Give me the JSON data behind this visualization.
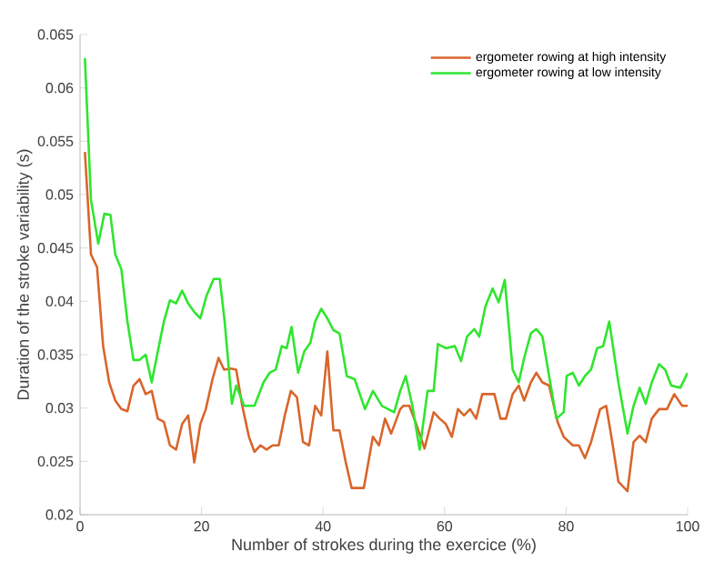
{
  "chart_data": {
    "type": "line",
    "xlabel": "Number of strokes during the exercice (%)",
    "ylabel": "Duration of the stroke variability (s)",
    "xlim": [
      0,
      100
    ],
    "xticks": [
      0,
      20,
      40,
      60,
      80,
      100
    ],
    "ylim": [
      0.02,
      0.065
    ],
    "yticks": [
      0.02,
      0.025,
      0.03,
      0.035,
      0.04,
      0.045,
      0.05,
      0.055,
      0.06,
      0.065
    ],
    "legend": "top right",
    "grid": false,
    "marker": "none",
    "line_style": "solid",
    "series": [
      {
        "name": "ergometer rowing at high intensity",
        "color": "#d9652b",
        "x": [
          0.8,
          1.8,
          2.8,
          3.8,
          4.8,
          5.8,
          6.8,
          7.8,
          8.8,
          9.8,
          10.8,
          11.8,
          12.8,
          13.8,
          14.8,
          15.8,
          16.8,
          17.8,
          18.8,
          19.8,
          20.7,
          21.8,
          22.8,
          23.7,
          24.8,
          25.7,
          26.7,
          27.8,
          28.7,
          29.7,
          30.7,
          31.7,
          32.7,
          33.7,
          34.7,
          35.7,
          36.7,
          37.7,
          38.7,
          39.7,
          40.7,
          41.7,
          42.7,
          43.7,
          44.7,
          46.7,
          48.2,
          49.2,
          50.2,
          51.2,
          52.7,
          53.2,
          54.2,
          55.2,
          56.7,
          58.2,
          59.2,
          60.2,
          61.2,
          62.2,
          63.2,
          64.2,
          65.2,
          66.2,
          68.2,
          69.2,
          70.1,
          71.2,
          72.2,
          73.1,
          74.2,
          75.1,
          76.1,
          77.2,
          78.6,
          79.6,
          81.1,
          82.1,
          83.1,
          84.1,
          85.6,
          86.6,
          87.6,
          88.6,
          90.1,
          91.1,
          92.1,
          93.1,
          94.1,
          95.3,
          96.6,
          97.8,
          99.1,
          100
        ],
        "values": [
          0.054,
          0.0444,
          0.0432,
          0.0358,
          0.0324,
          0.0307,
          0.0299,
          0.0297,
          0.0321,
          0.0327,
          0.0313,
          0.0316,
          0.029,
          0.0287,
          0.0265,
          0.0261,
          0.0285,
          0.0293,
          0.0249,
          0.0285,
          0.0299,
          0.0327,
          0.0347,
          0.0336,
          0.0337,
          0.0336,
          0.0302,
          0.0273,
          0.0259,
          0.0265,
          0.0261,
          0.0265,
          0.0265,
          0.0293,
          0.0316,
          0.031,
          0.0268,
          0.0265,
          0.0302,
          0.0293,
          0.0353,
          0.0279,
          0.0279,
          0.025,
          0.0225,
          0.0225,
          0.0273,
          0.0265,
          0.029,
          0.0276,
          0.0299,
          0.0302,
          0.0302,
          0.0287,
          0.0262,
          0.0296,
          0.029,
          0.0285,
          0.0273,
          0.0299,
          0.0293,
          0.0299,
          0.029,
          0.0313,
          0.0313,
          0.029,
          0.029,
          0.0313,
          0.0321,
          0.0307,
          0.0324,
          0.0333,
          0.0324,
          0.0321,
          0.0287,
          0.0273,
          0.0265,
          0.0265,
          0.0253,
          0.0268,
          0.0299,
          0.0302,
          0.0268,
          0.0231,
          0.0222,
          0.0268,
          0.0274,
          0.0268,
          0.029,
          0.0299,
          0.0299,
          0.0313,
          0.0302,
          0.0302
        ]
      },
      {
        "name": "ergometer rowing at low intensity",
        "color": "#2ee62e",
        "x": [
          0.8,
          1.8,
          3,
          4,
          5,
          5.8,
          6.8,
          7.8,
          8.8,
          9.8,
          10.8,
          11.8,
          12.8,
          13.8,
          14.8,
          15.8,
          16.8,
          17.8,
          18.8,
          19.8,
          20.8,
          22,
          23,
          23.8,
          25,
          25.7,
          27,
          28.7,
          30.2,
          31.2,
          32.2,
          33.2,
          34,
          34.8,
          35.9,
          36.9,
          37.9,
          38.7,
          39.7,
          40.7,
          41.7,
          42.7,
          43.9,
          45.2,
          46.9,
          48.2,
          49.7,
          51.7,
          52.7,
          53.6,
          54.7,
          55.9,
          57.2,
          58.2,
          58.9,
          60.2,
          61.7,
          62.7,
          63.7,
          64.9,
          65.7,
          66.7,
          67.9,
          68.9,
          69.9,
          71.2,
          72.2,
          73.1,
          74.2,
          75.1,
          76.1,
          77.2,
          78.4,
          79.6,
          80.1,
          81.1,
          82.1,
          83.1,
          84.1,
          85.1,
          86.1,
          87.1,
          88.6,
          90.1,
          91.1,
          92.1,
          93.1,
          94.1,
          95.3,
          96.3,
          97.3,
          98.8,
          100
        ],
        "values": [
          0.0628,
          0.0495,
          0.0454,
          0.0482,
          0.0481,
          0.0444,
          0.043,
          0.0381,
          0.0345,
          0.0345,
          0.035,
          0.0324,
          0.0353,
          0.0381,
          0.0401,
          0.0398,
          0.041,
          0.0398,
          0.039,
          0.0384,
          0.0405,
          0.0421,
          0.0421,
          0.0381,
          0.0304,
          0.0321,
          0.0302,
          0.0302,
          0.0324,
          0.0333,
          0.0336,
          0.0358,
          0.0356,
          0.0376,
          0.0333,
          0.0353,
          0.0361,
          0.0381,
          0.0393,
          0.0384,
          0.0373,
          0.037,
          0.033,
          0.0327,
          0.0299,
          0.0316,
          0.0302,
          0.0296,
          0.0316,
          0.033,
          0.0302,
          0.0261,
          0.0316,
          0.0316,
          0.036,
          0.0356,
          0.0358,
          0.0344,
          0.0367,
          0.0374,
          0.0367,
          0.0395,
          0.0412,
          0.0399,
          0.042,
          0.0336,
          0.0324,
          0.0347,
          0.037,
          0.0374,
          0.0367,
          0.033,
          0.029,
          0.0296,
          0.033,
          0.0333,
          0.0321,
          0.033,
          0.0336,
          0.0356,
          0.0358,
          0.0381,
          0.0324,
          0.0276,
          0.0302,
          0.0319,
          0.0304,
          0.0324,
          0.0341,
          0.0336,
          0.0321,
          0.0319,
          0.0333
        ]
      }
    ]
  }
}
